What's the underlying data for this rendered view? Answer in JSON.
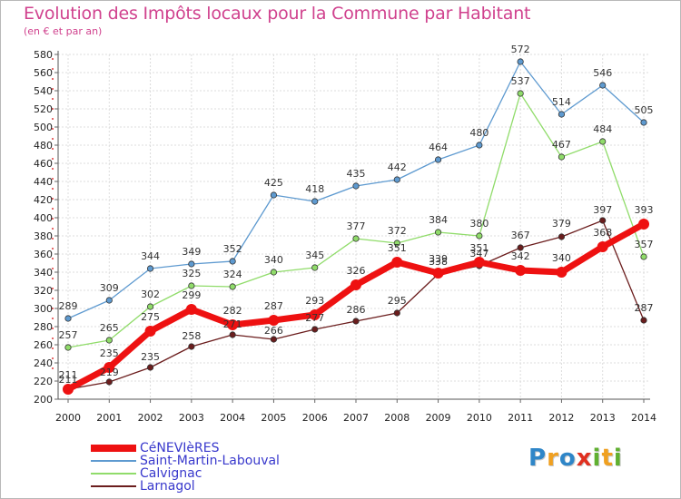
{
  "title": "Evolution des Impôts locaux pour la Commune par Habitant",
  "subtitle": "(en € et par an)",
  "logo": {
    "letters": [
      {
        "ch": "P",
        "color": "#2f86c8"
      },
      {
        "ch": "r",
        "color": "#f0a020"
      },
      {
        "ch": "o",
        "color": "#2f86c8"
      },
      {
        "ch": "x",
        "color": "#e03020"
      },
      {
        "ch": "i",
        "color": "#60b030"
      },
      {
        "ch": "t",
        "color": "#f0a020"
      },
      {
        "ch": "i",
        "color": "#60b030"
      }
    ]
  },
  "chart_data": {
    "type": "line",
    "x": [
      2000,
      2001,
      2002,
      2003,
      2004,
      2005,
      2006,
      2007,
      2008,
      2009,
      2010,
      2011,
      2012,
      2013,
      2014
    ],
    "ylim": [
      200,
      580
    ],
    "yticks": [
      200,
      220,
      240,
      260,
      280,
      300,
      320,
      340,
      360,
      380,
      400,
      420,
      440,
      460,
      480,
      500,
      520,
      540,
      560,
      580
    ],
    "grid": true,
    "legend_position": "bottom-left",
    "series": [
      {
        "name": "Lärnagol",
        "label": "Larnagol",
        "color": "#6b1d1d",
        "width": 1.3,
        "marker": 3.2,
        "values": [
          211,
          219,
          235,
          258,
          271,
          266,
          277,
          286,
          295,
          338,
          347,
          367,
          379,
          397,
          287
        ]
      },
      {
        "name": "Calvignac",
        "label": "Calvignac",
        "color": "#90dc6a",
        "width": 1.3,
        "marker": 3.2,
        "values": [
          257,
          265,
          302,
          325,
          324,
          340,
          345,
          377,
          372,
          384,
          380,
          537,
          467,
          484,
          357
        ]
      },
      {
        "name": "Saint-Martin-Labouval",
        "label": "Saint-Martin-Labouval",
        "color": "#5e9ad0",
        "width": 1.3,
        "marker": 3.2,
        "values": [
          289,
          309,
          344,
          349,
          352,
          425,
          418,
          435,
          442,
          464,
          480,
          572,
          514,
          546,
          505
        ]
      },
      {
        "name": "CéNEVIèRES",
        "label": "CéNEVIèRES",
        "color": "#ee1111",
        "width": 7,
        "marker": 6,
        "values": [
          211,
          235,
          275,
          299,
          282,
          287,
          293,
          326,
          351,
          339,
          351,
          342,
          340,
          368,
          393
        ]
      }
    ]
  }
}
